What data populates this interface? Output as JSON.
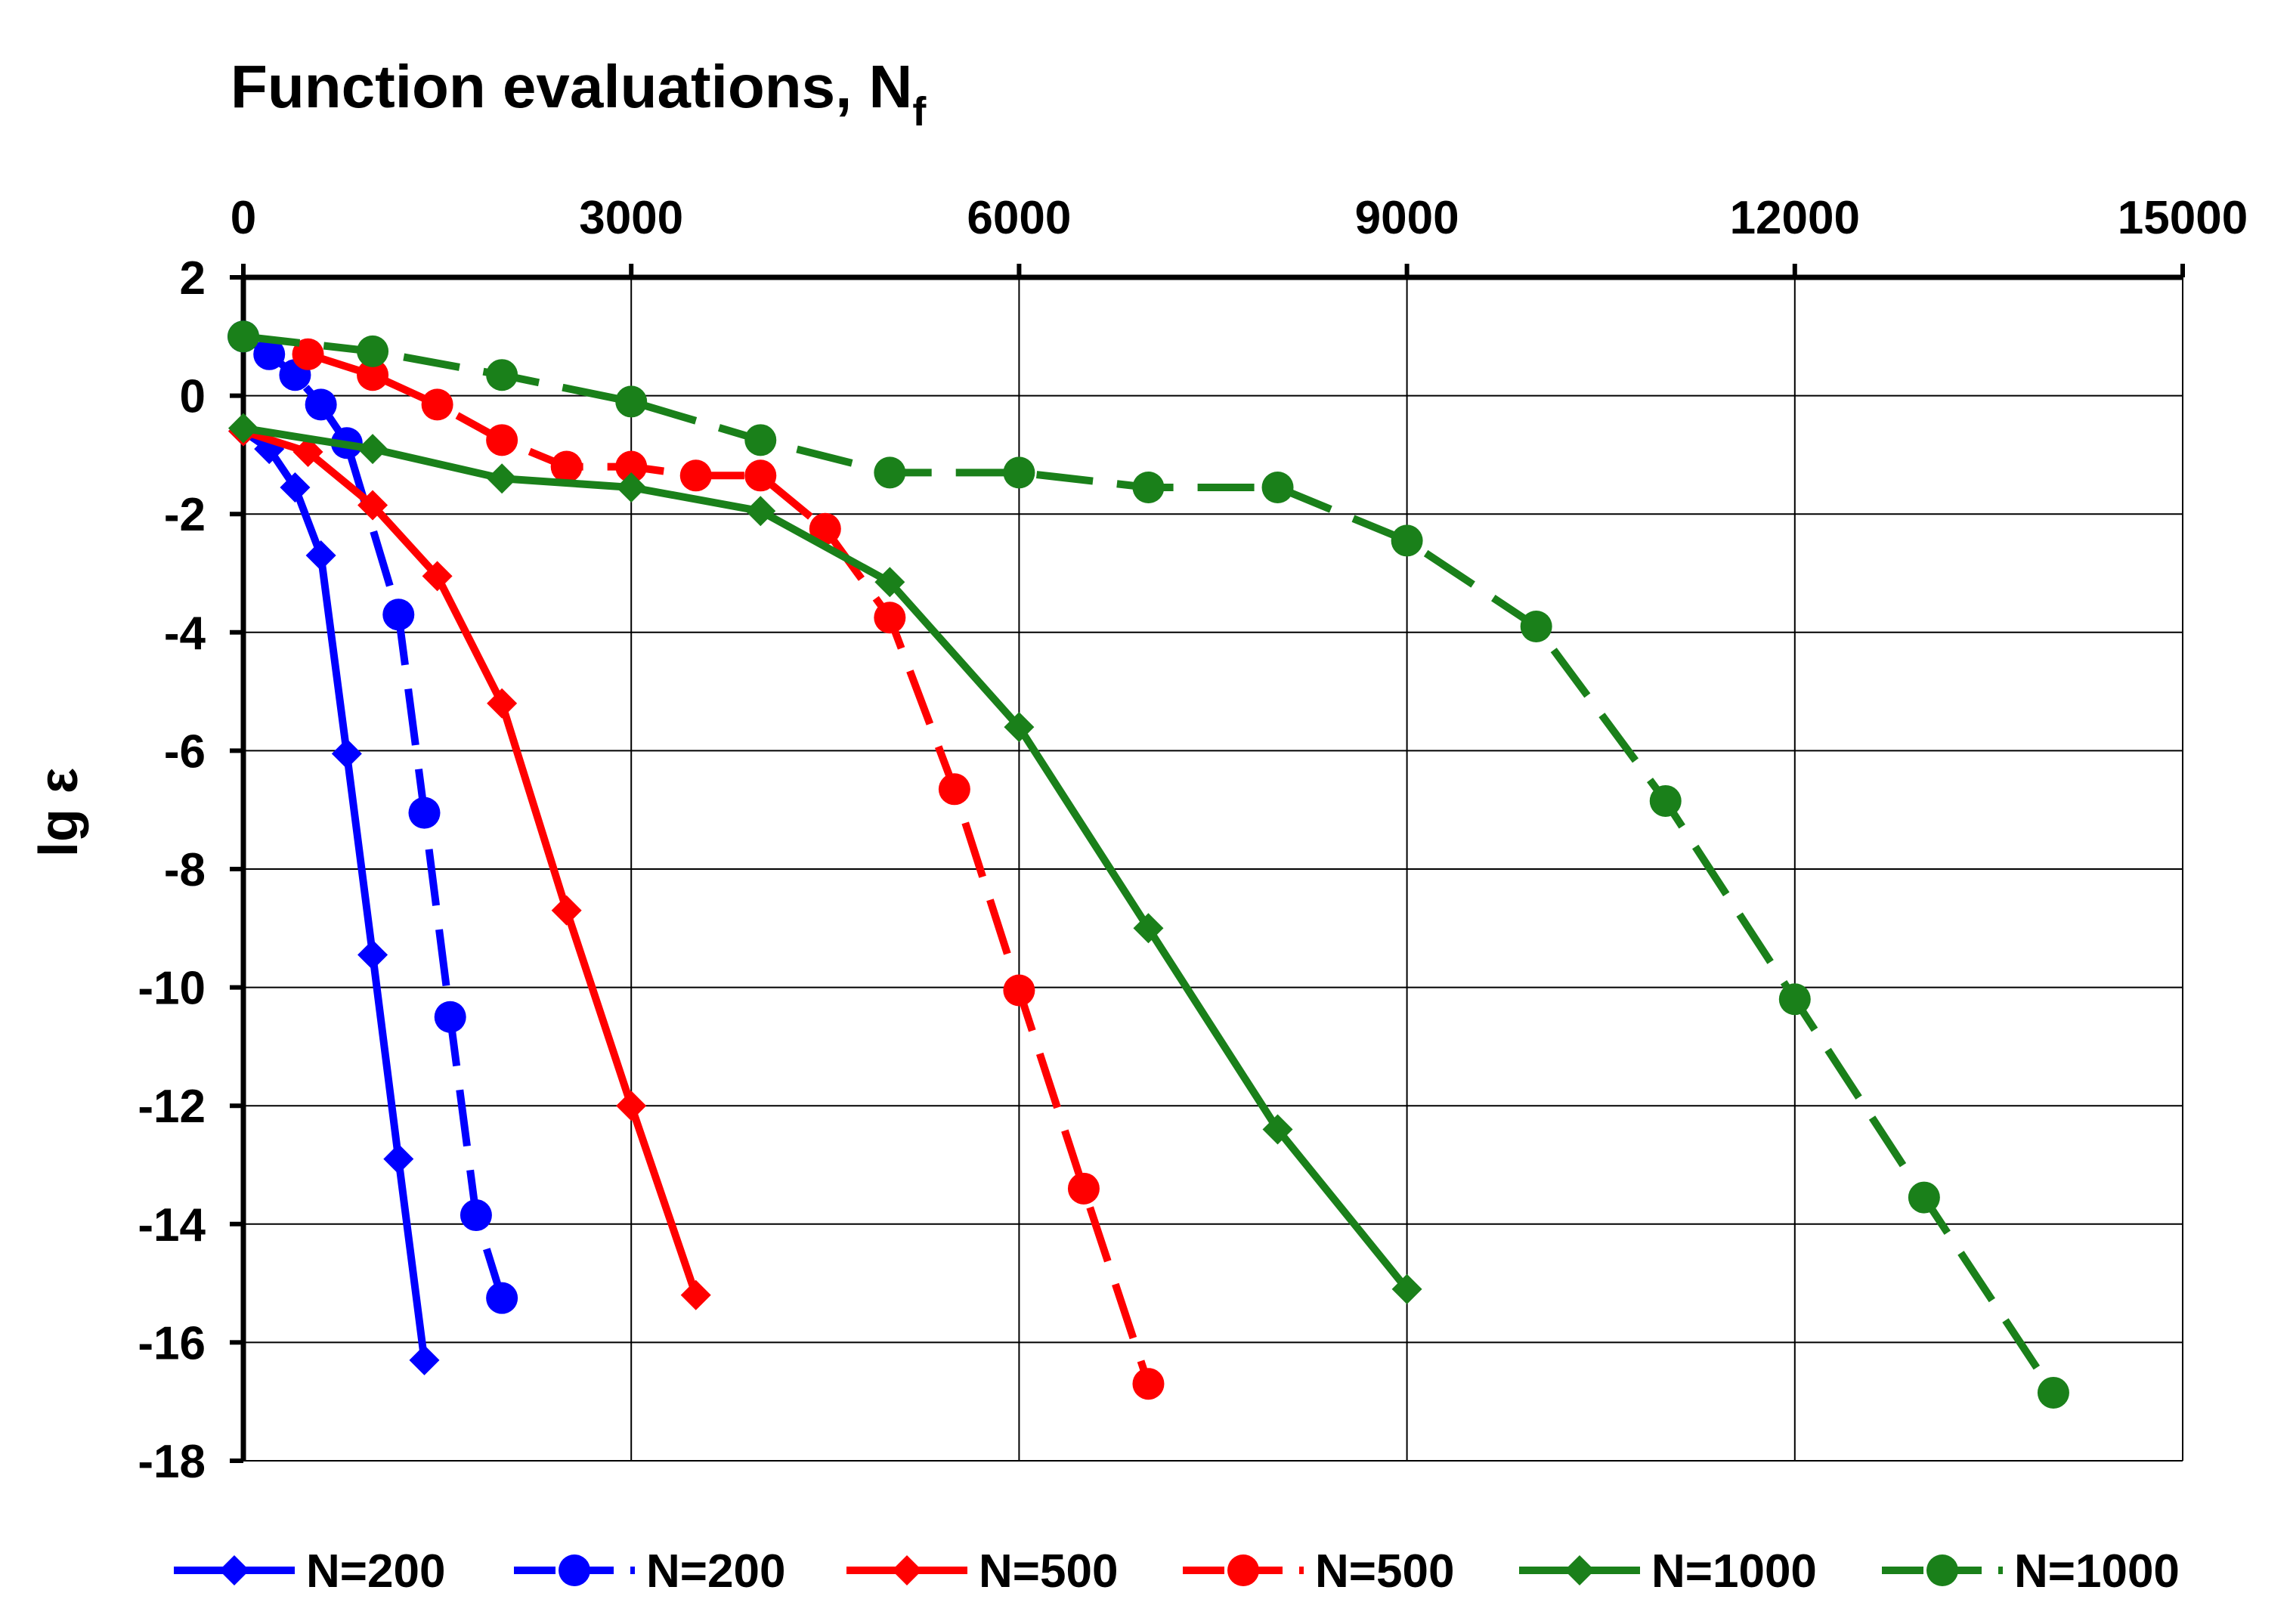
{
  "chart_data": {
    "type": "line",
    "title": "Function evaluations, N",
    "title_subscript": "f",
    "xlabel": "Function evaluations, N",
    "xlabel_subscript": "f",
    "ylabel": "lg ε",
    "xlim": [
      0,
      15000
    ],
    "ylim": [
      -18,
      2
    ],
    "x_ticks": [
      0,
      3000,
      6000,
      9000,
      12000,
      15000
    ],
    "x_tick_labels": [
      "0",
      "3000",
      "6000",
      "9000",
      "12000",
      "15000"
    ],
    "y_ticks": [
      2,
      0,
      -2,
      -4,
      -6,
      -8,
      -10,
      -12,
      -14,
      -16,
      -18
    ],
    "y_tick_labels": [
      "2",
      "0",
      "-2",
      "-4",
      "-6",
      "-8",
      "-10",
      "-12",
      "-14",
      "-16",
      "-18"
    ],
    "x_axis_position": "top",
    "grid": true,
    "legend_position": "bottom",
    "series": [
      {
        "name": "N=200",
        "color": "#0000ff",
        "marker": "diamond",
        "line": "solid",
        "x": [
          0,
          200,
          400,
          600,
          800,
          1000,
          1200,
          1400
        ],
        "y": [
          -0.6,
          -0.9,
          -1.55,
          -2.7,
          -6.05,
          -9.45,
          -12.9,
          -16.3
        ]
      },
      {
        "name": "N=200",
        "color": "#0000ff",
        "marker": "circle",
        "line": "dashed",
        "x": [
          0,
          200,
          400,
          600,
          800,
          1200,
          1400,
          1600,
          1800,
          2000
        ],
        "y": [
          1.0,
          0.7,
          0.35,
          -0.15,
          -0.8,
          -3.7,
          -7.05,
          -10.5,
          -13.85,
          -15.25
        ]
      },
      {
        "name": "N=500",
        "color": "#ff0000",
        "marker": "diamond",
        "line": "solid",
        "x": [
          0,
          500,
          1000,
          1500,
          2000,
          2500,
          3000,
          3500
        ],
        "y": [
          -0.6,
          -0.95,
          -1.85,
          -3.05,
          -5.2,
          -8.7,
          -12.0,
          -15.2
        ]
      },
      {
        "name": "N=500",
        "color": "#ff0000",
        "marker": "circle",
        "line": "dashed",
        "x": [
          500,
          1000,
          1500,
          2000,
          2500,
          3000,
          3500,
          4000,
          4500,
          5000,
          5500,
          6000,
          6500,
          7000
        ],
        "y": [
          0.7,
          0.35,
          -0.15,
          -0.75,
          -1.2,
          -1.2,
          -1.35,
          -1.35,
          -2.25,
          -3.75,
          -6.65,
          -10.05,
          -13.4,
          -16.7
        ]
      },
      {
        "name": "N=1000",
        "color": "#1a801a",
        "marker": "diamond",
        "line": "solid",
        "x": [
          0,
          1000,
          2000,
          3000,
          4000,
          5000,
          6000,
          7000,
          8000,
          9000
        ],
        "y": [
          -0.55,
          -0.9,
          -1.4,
          -1.55,
          -1.95,
          -3.15,
          -5.6,
          -9.0,
          -12.4,
          -15.1
        ]
      },
      {
        "name": "N=1000",
        "color": "#1a801a",
        "marker": "circle",
        "line": "dashed",
        "x": [
          0,
          1000,
          2000,
          3000,
          4000,
          5000,
          6000,
          7000,
          8000,
          9000,
          10000,
          11000,
          12000,
          13000,
          14000
        ],
        "y": [
          1.0,
          0.75,
          0.35,
          -0.1,
          -0.75,
          -1.3,
          -1.3,
          -1.55,
          -1.55,
          -2.45,
          -3.9,
          -6.85,
          -10.2,
          -13.55,
          -16.85
        ]
      }
    ]
  }
}
